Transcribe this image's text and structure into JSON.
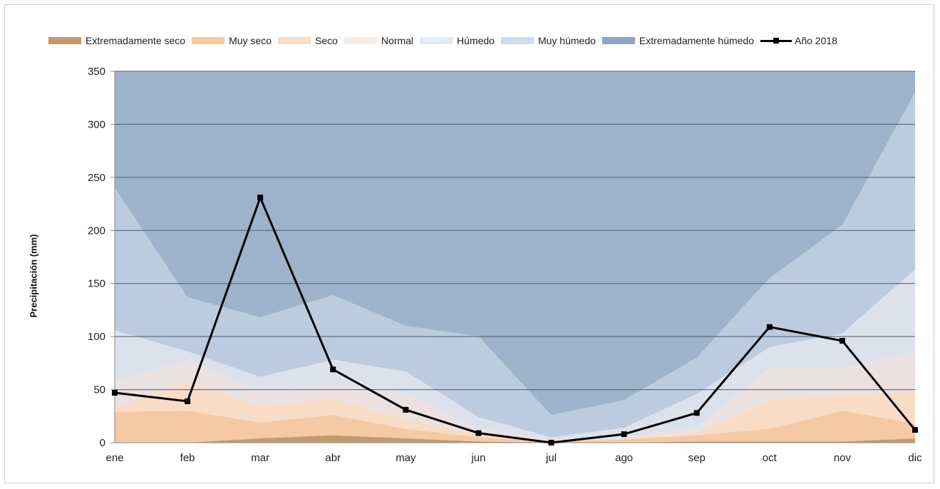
{
  "chart_data": {
    "type": "area",
    "title": "",
    "xlabel": "",
    "ylabel": "Precipitación (mm)",
    "categories": [
      "ene",
      "feb",
      "mar",
      "abr",
      "may",
      "jun",
      "jul",
      "ago",
      "sep",
      "oct",
      "nov",
      "dic"
    ],
    "ylim": [
      0,
      350
    ],
    "yticks": [
      0,
      50,
      100,
      150,
      200,
      250,
      300,
      350
    ],
    "grid": true,
    "legend_position": "top",
    "bands": [
      {
        "name": "Extremadamente seco",
        "color": "#c49a6c",
        "upper": [
          0,
          0,
          4,
          7,
          4,
          1,
          0,
          0,
          1,
          1,
          1,
          4
        ]
      },
      {
        "name": "Muy seco",
        "color": "#f4c9a3",
        "upper": [
          29,
          30,
          19,
          26,
          13,
          5,
          1,
          3,
          7,
          13,
          30,
          18
        ]
      },
      {
        "name": "Seco",
        "color": "#f8dcc6",
        "upper": [
          33,
          58,
          34,
          42,
          22,
          8,
          2,
          4,
          9,
          40,
          45,
          48
        ]
      },
      {
        "name": "Normal",
        "color": "#ebe1e1",
        "upper": [
          57,
          78,
          49,
          54,
          47,
          13,
          3,
          5,
          14,
          70,
          70,
          86
        ]
      },
      {
        "name": "Húmedo",
        "color": "#dbe2ec",
        "upper": [
          106,
          86,
          62,
          78,
          67,
          24,
          5,
          14,
          46,
          90,
          103,
          163
        ]
      },
      {
        "name": "Muy húmedo",
        "color": "#bccbdd",
        "upper": [
          240,
          137,
          118,
          139,
          110,
          100,
          26,
          40,
          80,
          155,
          205,
          330
        ]
      },
      {
        "name": "Extremadamente húmedo",
        "color": "#9eb2cc",
        "upper": [
          350,
          350,
          350,
          350,
          350,
          350,
          350,
          350,
          350,
          350,
          350,
          350
        ]
      }
    ],
    "series": [
      {
        "name": "Año 2018",
        "color": "#000000",
        "values": [
          47,
          39,
          231,
          69,
          31,
          9,
          0,
          8,
          28,
          109,
          96,
          12
        ]
      }
    ]
  }
}
